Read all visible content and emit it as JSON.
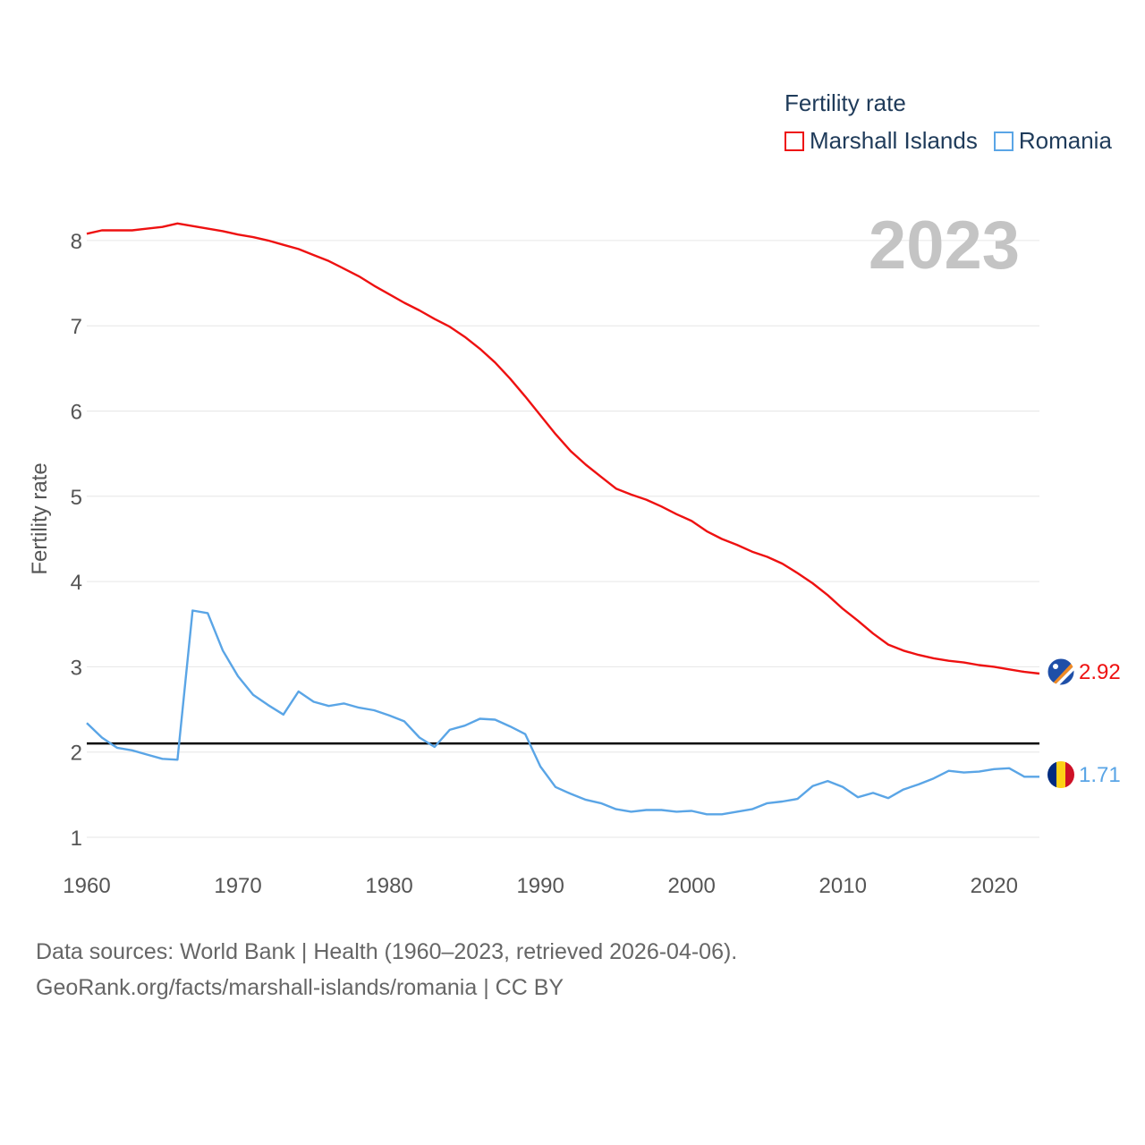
{
  "legend": {
    "title": "Fertility rate",
    "items": [
      {
        "label": "Marshall Islands",
        "color": "#ee1111"
      },
      {
        "label": "Romania",
        "color": "#5aa5e6"
      }
    ]
  },
  "year_watermark": "2023",
  "source": {
    "line1": "Data sources: World Bank | Health (1960–2023, retrieved 2026-04-06).",
    "line2": "GeoRank.org/facts/marshall-islands/romania | CC BY"
  },
  "chart_data": {
    "type": "line",
    "title": "Fertility rate",
    "xlabel": "",
    "ylabel": "Fertility rate",
    "xlim": [
      1960,
      2023
    ],
    "ylim": [
      0.7,
      9
    ],
    "x_ticks": [
      1960,
      1970,
      1980,
      1990,
      2000,
      2010,
      2020
    ],
    "y_ticks": [
      1,
      2,
      3,
      4,
      5,
      6,
      7,
      8
    ],
    "grid": true,
    "reference_line": {
      "y": 2.1,
      "color": "#000000"
    },
    "x": [
      1960,
      1961,
      1962,
      1963,
      1964,
      1965,
      1966,
      1967,
      1968,
      1969,
      1970,
      1971,
      1972,
      1973,
      1974,
      1975,
      1976,
      1977,
      1978,
      1979,
      1980,
      1981,
      1982,
      1983,
      1984,
      1985,
      1986,
      1987,
      1988,
      1989,
      1990,
      1991,
      1992,
      1993,
      1994,
      1995,
      1996,
      1997,
      1998,
      1999,
      2000,
      2001,
      2002,
      2003,
      2004,
      2005,
      2006,
      2007,
      2008,
      2009,
      2010,
      2011,
      2012,
      2013,
      2014,
      2015,
      2016,
      2017,
      2018,
      2019,
      2020,
      2021,
      2022,
      2023
    ],
    "series": [
      {
        "name": "Marshall Islands",
        "color": "#ee1111",
        "end_label": "2.92",
        "values": [
          8.08,
          8.12,
          8.12,
          8.12,
          8.14,
          8.16,
          8.2,
          8.17,
          8.14,
          8.11,
          8.07,
          8.04,
          8.0,
          7.95,
          7.9,
          7.83,
          7.76,
          7.67,
          7.58,
          7.47,
          7.37,
          7.27,
          7.18,
          7.08,
          6.99,
          6.87,
          6.73,
          6.57,
          6.38,
          6.17,
          5.95,
          5.73,
          5.53,
          5.37,
          5.23,
          5.09,
          5.02,
          4.96,
          4.88,
          4.79,
          4.71,
          4.59,
          4.5,
          4.43,
          4.35,
          4.29,
          4.21,
          4.1,
          3.98,
          3.84,
          3.68,
          3.54,
          3.39,
          3.26,
          3.19,
          3.14,
          3.1,
          3.07,
          3.05,
          3.02,
          3.0,
          2.97,
          2.94,
          2.92
        ]
      },
      {
        "name": "Romania",
        "color": "#5aa5e6",
        "end_label": "1.71",
        "values": [
          2.34,
          2.17,
          2.05,
          2.02,
          1.97,
          1.92,
          1.91,
          3.66,
          3.63,
          3.19,
          2.89,
          2.67,
          2.55,
          2.44,
          2.71,
          2.59,
          2.54,
          2.57,
          2.52,
          2.49,
          2.43,
          2.36,
          2.17,
          2.06,
          2.26,
          2.31,
          2.39,
          2.38,
          2.3,
          2.21,
          1.83,
          1.59,
          1.51,
          1.44,
          1.4,
          1.33,
          1.3,
          1.32,
          1.32,
          1.3,
          1.31,
          1.27,
          1.27,
          1.3,
          1.33,
          1.4,
          1.42,
          1.45,
          1.6,
          1.66,
          1.59,
          1.47,
          1.52,
          1.46,
          1.56,
          1.62,
          1.69,
          1.78,
          1.76,
          1.77,
          1.8,
          1.81,
          1.71,
          1.71
        ]
      }
    ]
  }
}
